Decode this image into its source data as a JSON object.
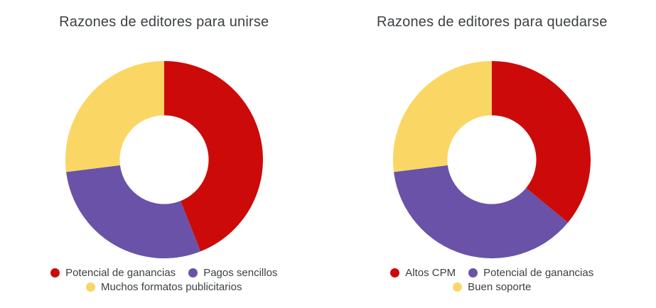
{
  "theme": {
    "background": "#FFFFFF",
    "title_color": "#3C4043",
    "legend_text_color": "#3C4043"
  },
  "chart_data": [
    {
      "type": "pie",
      "variant": "donut",
      "title": "Razones de editores para unirse",
      "labels": [
        "Potencial de ganancias",
        "Pagos sencillos",
        "Muchos formatos publicitarios"
      ],
      "values": [
        44,
        29,
        27
      ],
      "colors": [
        "#CC0A0A",
        "#6952A8",
        "#FAD664"
      ],
      "inner_radius_ratio": 0.45,
      "start_angle": "top",
      "direction": "clockwise",
      "legend_position": "bottom",
      "data_labels": "none"
    },
    {
      "type": "pie",
      "variant": "donut",
      "title": "Razones de editores para quedarse",
      "labels": [
        "Altos CPM",
        "Potencial de ganancias",
        "Buen soporte"
      ],
      "values": [
        36,
        37,
        27
      ],
      "colors": [
        "#CC0A0A",
        "#6952A8",
        "#FAD664"
      ],
      "inner_radius_ratio": 0.45,
      "start_angle": "top",
      "direction": "clockwise",
      "legend_position": "bottom",
      "data_labels": "none"
    }
  ]
}
